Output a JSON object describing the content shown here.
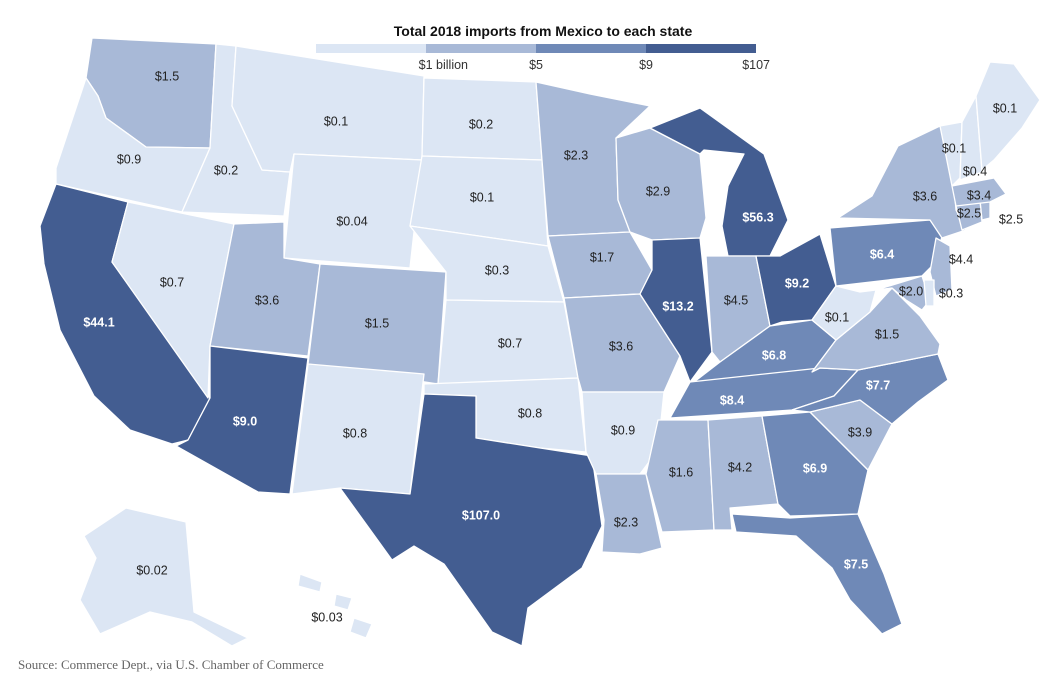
{
  "title": "Total 2018 imports from Mexico to each state",
  "source": "Source: Commerce Dept., via U.S. Chamber of Commerce",
  "colors": {
    "c1": "#dce6f4",
    "c2": "#a8b9d7",
    "c3": "#6f89b7",
    "c4": "#435d91",
    "border": "#ffffff"
  },
  "legend": {
    "bins": [
      "c1",
      "c2",
      "c3",
      "c4"
    ],
    "ticks": [
      "$1 billion",
      "$5",
      "$9",
      "$107"
    ]
  },
  "chart_data": {
    "type": "choropleth",
    "unit": "billion dollars",
    "states": [
      {
        "state": "WA",
        "label": "$1.5",
        "value": 1.5,
        "bin": "c2"
      },
      {
        "state": "OR",
        "label": "$0.9",
        "value": 0.9,
        "bin": "c1"
      },
      {
        "state": "CA",
        "label": "$44.1",
        "value": 44.1,
        "bin": "c4"
      },
      {
        "state": "ID",
        "label": "$0.2",
        "value": 0.2,
        "bin": "c1"
      },
      {
        "state": "NV",
        "label": "$0.7",
        "value": 0.7,
        "bin": "c1"
      },
      {
        "state": "MT",
        "label": "$0.1",
        "value": 0.1,
        "bin": "c1"
      },
      {
        "state": "WY",
        "label": "$0.04",
        "value": 0.04,
        "bin": "c1"
      },
      {
        "state": "UT",
        "label": "$3.6",
        "value": 3.6,
        "bin": "c2"
      },
      {
        "state": "AZ",
        "label": "$9.0",
        "value": 9.0,
        "bin": "c4"
      },
      {
        "state": "CO",
        "label": "$1.5",
        "value": 1.5,
        "bin": "c2"
      },
      {
        "state": "NM",
        "label": "$0.8",
        "value": 0.8,
        "bin": "c1"
      },
      {
        "state": "ND",
        "label": "$0.2",
        "value": 0.2,
        "bin": "c1"
      },
      {
        "state": "SD",
        "label": "$0.1",
        "value": 0.1,
        "bin": "c1"
      },
      {
        "state": "NE",
        "label": "$0.3",
        "value": 0.3,
        "bin": "c1"
      },
      {
        "state": "KS",
        "label": "$0.7",
        "value": 0.7,
        "bin": "c1"
      },
      {
        "state": "OK",
        "label": "$0.8",
        "value": 0.8,
        "bin": "c1"
      },
      {
        "state": "TX",
        "label": "$107.0",
        "value": 107.0,
        "bin": "c4"
      },
      {
        "state": "MN",
        "label": "$2.3",
        "value": 2.3,
        "bin": "c2"
      },
      {
        "state": "IA",
        "label": "$1.7",
        "value": 1.7,
        "bin": "c2"
      },
      {
        "state": "MO",
        "label": "$3.6",
        "value": 3.6,
        "bin": "c2"
      },
      {
        "state": "AR",
        "label": "$0.9",
        "value": 0.9,
        "bin": "c1"
      },
      {
        "state": "LA",
        "label": "$2.3",
        "value": 2.3,
        "bin": "c2"
      },
      {
        "state": "WI",
        "label": "$2.9",
        "value": 2.9,
        "bin": "c2"
      },
      {
        "state": "IL",
        "label": "$13.2",
        "value": 13.2,
        "bin": "c4"
      },
      {
        "state": "MI",
        "label": "$56.3",
        "value": 56.3,
        "bin": "c4"
      },
      {
        "state": "IN",
        "label": "$4.5",
        "value": 4.5,
        "bin": "c2"
      },
      {
        "state": "OH",
        "label": "$9.2",
        "value": 9.2,
        "bin": "c4"
      },
      {
        "state": "KY",
        "label": "$6.8",
        "value": 6.8,
        "bin": "c3"
      },
      {
        "state": "TN",
        "label": "$8.4",
        "value": 8.4,
        "bin": "c3"
      },
      {
        "state": "MS",
        "label": "$1.6",
        "value": 1.6,
        "bin": "c2"
      },
      {
        "state": "AL",
        "label": "$4.2",
        "value": 4.2,
        "bin": "c2"
      },
      {
        "state": "GA",
        "label": "$6.9",
        "value": 6.9,
        "bin": "c3"
      },
      {
        "state": "FL",
        "label": "$7.5",
        "value": 7.5,
        "bin": "c3"
      },
      {
        "state": "SC",
        "label": "$3.9",
        "value": 3.9,
        "bin": "c2"
      },
      {
        "state": "NC",
        "label": "$7.7",
        "value": 7.7,
        "bin": "c3"
      },
      {
        "state": "VA",
        "label": "$1.5",
        "value": 1.5,
        "bin": "c2"
      },
      {
        "state": "WV",
        "label": "$0.1",
        "value": 0.1,
        "bin": "c1"
      },
      {
        "state": "PA",
        "label": "$6.4",
        "value": 6.4,
        "bin": "c3"
      },
      {
        "state": "NY",
        "label": "$3.6",
        "value": 3.6,
        "bin": "c2"
      },
      {
        "state": "NJ",
        "label": "$4.4",
        "value": 4.4,
        "bin": "c2"
      },
      {
        "state": "MD",
        "label": "$2.0",
        "value": 2.0,
        "bin": "c2"
      },
      {
        "state": "DE",
        "label": "$0.3",
        "value": 0.3,
        "bin": "c1"
      },
      {
        "state": "CT",
        "label": "$2.5",
        "value": 2.5,
        "bin": "c2"
      },
      {
        "state": "RI",
        "label": "$2.5",
        "value": 2.5,
        "bin": "c2"
      },
      {
        "state": "MA",
        "label": "$3.4",
        "value": 3.4,
        "bin": "c2"
      },
      {
        "state": "VT",
        "label": "$0.1",
        "value": 0.1,
        "bin": "c1"
      },
      {
        "state": "NH",
        "label": "$0.4",
        "value": 0.4,
        "bin": "c1"
      },
      {
        "state": "ME",
        "label": "$0.1",
        "value": 0.1,
        "bin": "c1"
      },
      {
        "state": "AK",
        "label": "$0.02",
        "value": 0.02,
        "bin": "c1"
      },
      {
        "state": "HI",
        "label": "$0.03",
        "value": 0.03,
        "bin": "c1"
      }
    ]
  }
}
